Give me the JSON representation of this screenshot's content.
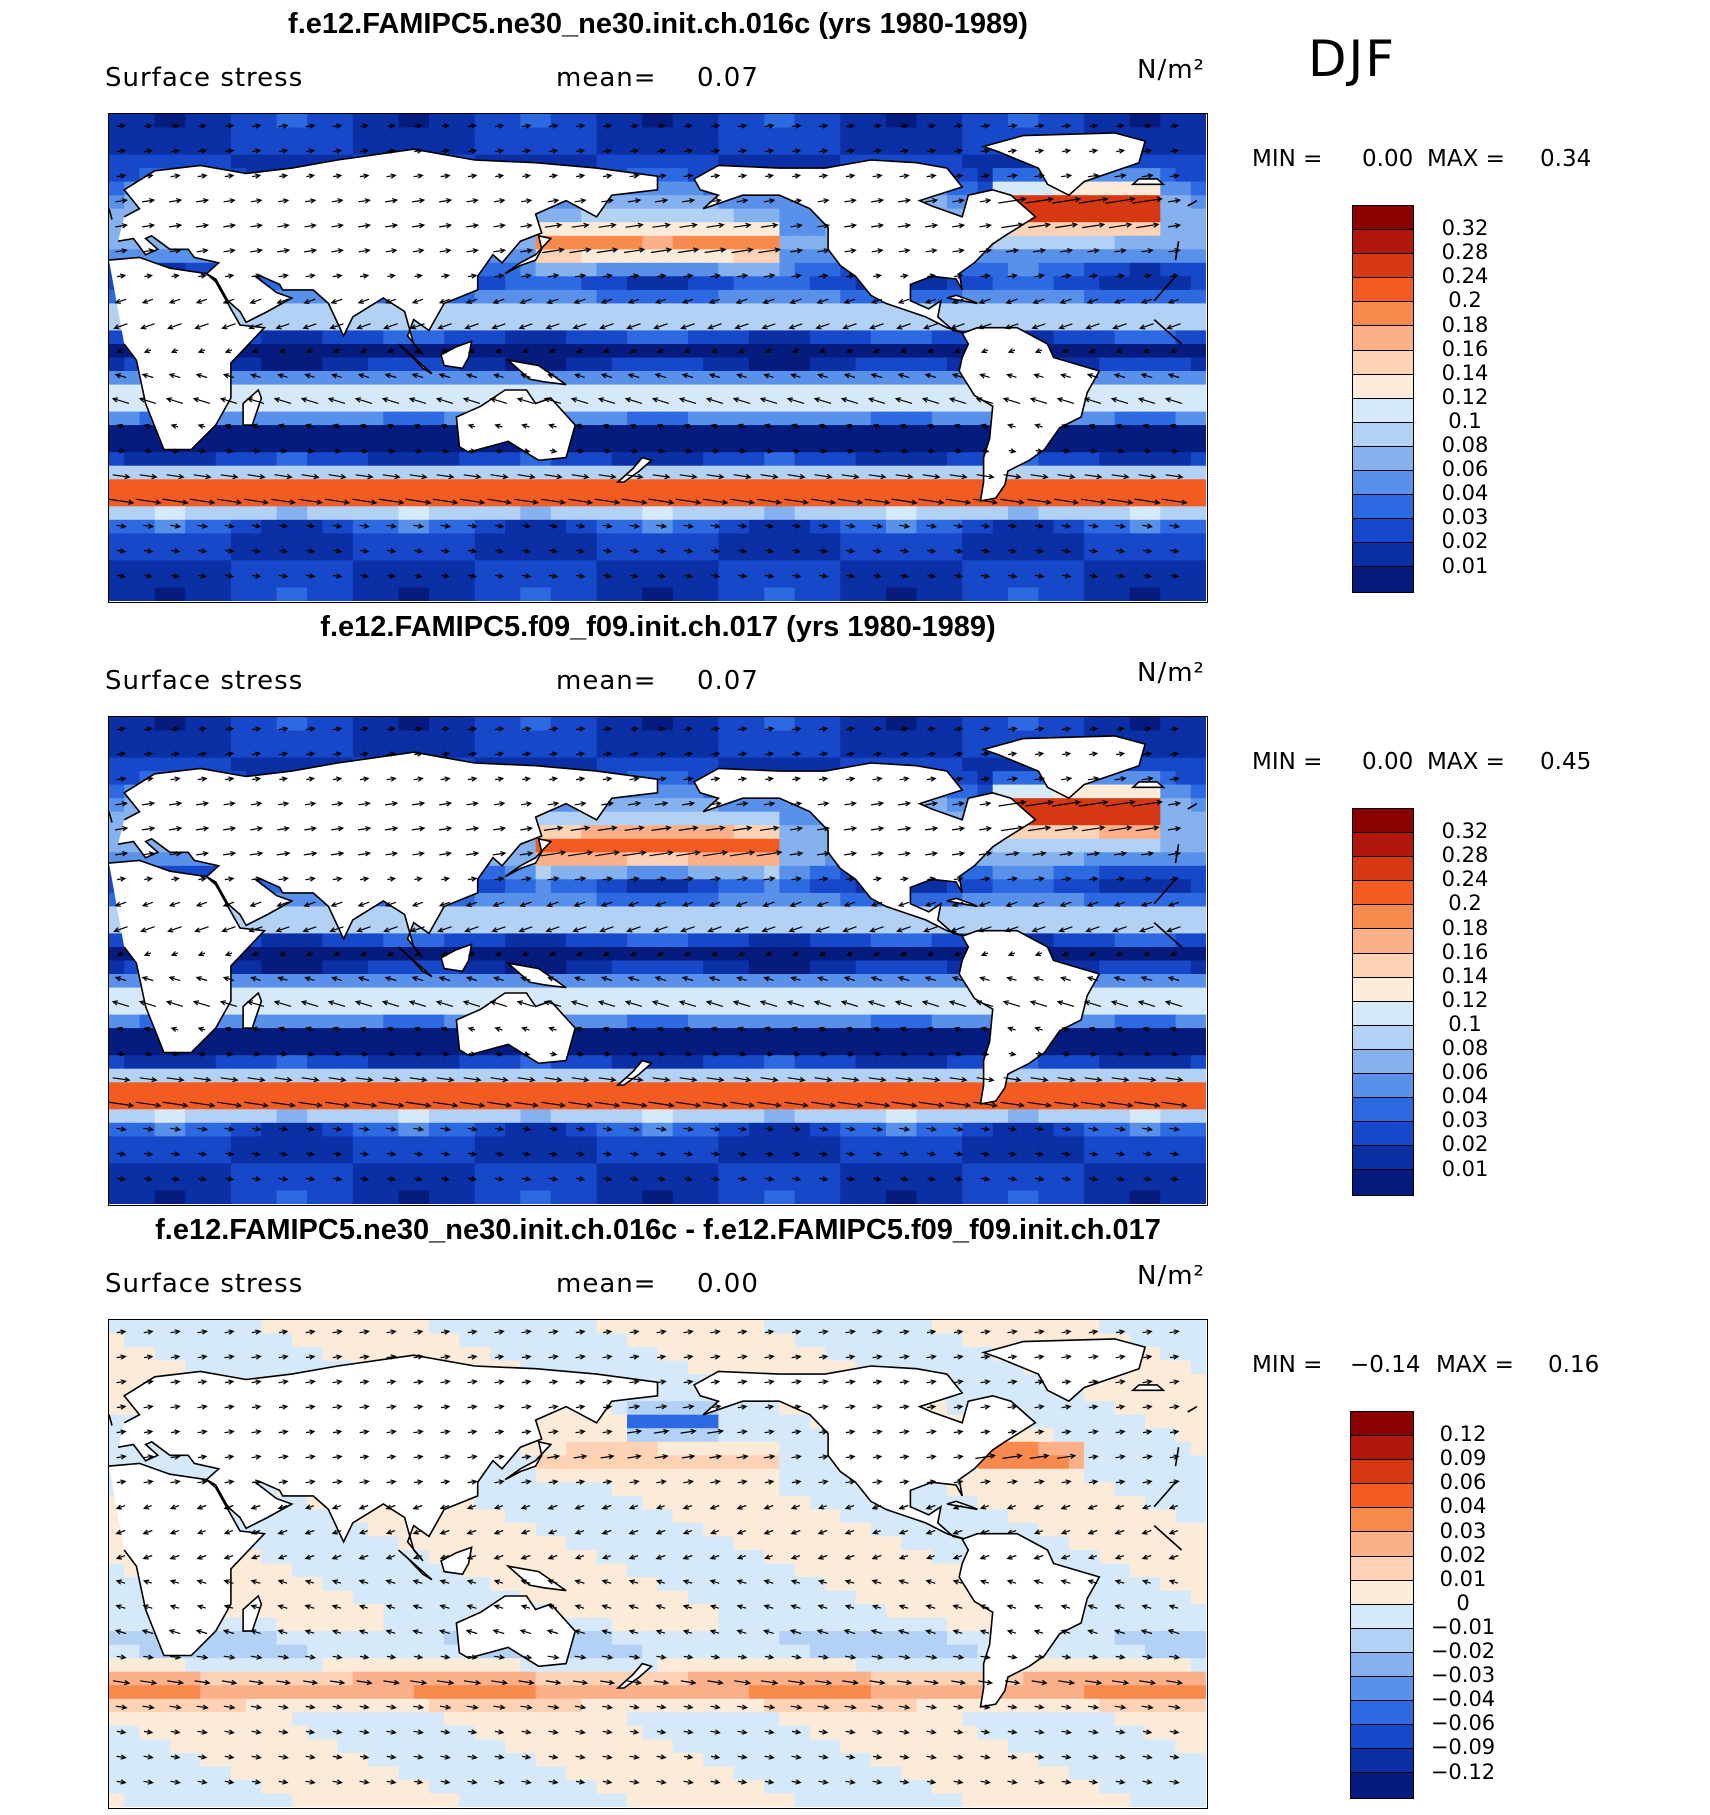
{
  "season_label": "DJF",
  "colors": {
    "land": "#ffffff",
    "coast": "#000000",
    "arrow": "#000000"
  },
  "panels": [
    {
      "title": "f.e12.FAMIPC5.ne30_ne30.init.ch.016c (yrs 1980-1989)",
      "variable": "Surface stress",
      "mean_label": "mean=",
      "mean_value": "0.07",
      "units": "N/m²",
      "min_label": "MIN =",
      "min_value": "0.00",
      "max_label": "MAX =",
      "max_value": "0.34",
      "field": "abs",
      "colorbar": {
        "labels": [
          "0.32",
          "0.28",
          "0.24",
          "0.2",
          "0.18",
          "0.16",
          "0.14",
          "0.12",
          "0.1",
          "0.08",
          "0.06",
          "0.04",
          "0.03",
          "0.02",
          "0.01"
        ],
        "colors": [
          "#8b0000",
          "#b2170d",
          "#d63812",
          "#f25c23",
          "#f98a4e",
          "#fbb08a",
          "#fdd2b5",
          "#fdebd9",
          "#d6e9fa",
          "#b3d0f5",
          "#85b2ef",
          "#5890ea",
          "#2d6ae2",
          "#1748c9",
          "#0b2fa5",
          "#051b7d"
        ]
      }
    },
    {
      "title": "f.e12.FAMIPC5.f09_f09.init.ch.017 (yrs 1980-1989)",
      "variable": "Surface stress",
      "mean_label": "mean=",
      "mean_value": "0.07",
      "units": "N/m²",
      "min_label": "MIN =",
      "min_value": "0.00",
      "max_label": "MAX =",
      "max_value": "0.45",
      "field": "abs",
      "colorbar": {
        "labels": [
          "0.32",
          "0.28",
          "0.24",
          "0.2",
          "0.18",
          "0.16",
          "0.14",
          "0.12",
          "0.1",
          "0.08",
          "0.06",
          "0.04",
          "0.03",
          "0.02",
          "0.01"
        ],
        "colors": [
          "#8b0000",
          "#b2170d",
          "#d63812",
          "#f25c23",
          "#f98a4e",
          "#fbb08a",
          "#fdd2b5",
          "#fdebd9",
          "#d6e9fa",
          "#b3d0f5",
          "#85b2ef",
          "#5890ea",
          "#2d6ae2",
          "#1748c9",
          "#0b2fa5",
          "#051b7d"
        ]
      }
    },
    {
      "title": "f.e12.FAMIPC5.ne30_ne30.init.ch.016c - f.e12.FAMIPC5.f09_f09.init.ch.017",
      "variable": "Surface stress",
      "mean_label": "mean=",
      "mean_value": "0.00",
      "units": "N/m²",
      "min_label": "MIN =",
      "min_value": "−0.14",
      "max_label": "MAX =",
      "max_value": "0.16",
      "field": "diff",
      "colorbar": {
        "labels": [
          "0.12",
          "0.09",
          "0.06",
          "0.04",
          "0.03",
          "0.02",
          "0.01",
          "0",
          "−0.01",
          "−0.02",
          "−0.03",
          "−0.04",
          "−0.06",
          "−0.09",
          "−0.12"
        ],
        "colors": [
          "#8b0000",
          "#b2170d",
          "#d63812",
          "#f25c23",
          "#f98a4e",
          "#fbb08a",
          "#fdd2b5",
          "#fdebd9",
          "#d6e9fa",
          "#b3d0f5",
          "#85b2ef",
          "#5890ea",
          "#2d6ae2",
          "#1748c9",
          "#0b2fa5",
          "#051b7d"
        ]
      }
    }
  ]
}
